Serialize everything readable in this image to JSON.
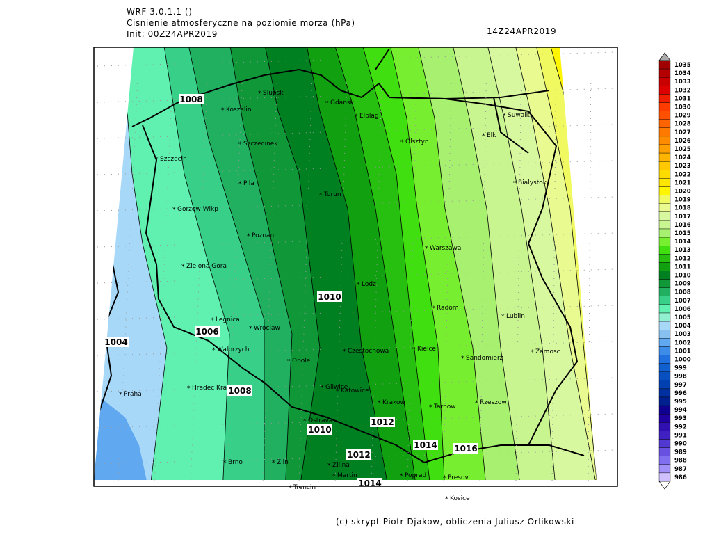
{
  "header": {
    "model": "WRF 3.0.1.1 ()",
    "title": "Cisnienie atmosferyczne na poziomie morza (hPa)",
    "init": "Init: 00Z24APR2019",
    "valid": "14Z24APR2019"
  },
  "map": {
    "cities": [
      "Slupsk",
      "Gdansk",
      "Koszalin",
      "Elblag",
      "Suwalki",
      "Szczecinek",
      "Olsztyn",
      "Elk",
      "Szczecin",
      "Pila",
      "Torun",
      "Bialystok",
      "Gorzow Wlkp",
      "Poznan",
      "Warszawa",
      "Zielona Gora",
      "Lodz",
      "Radom",
      "Lublin",
      "Legnica",
      "Wroclaw",
      "Walbrzych",
      "Kielce",
      "Czestochowa",
      "Opole",
      "Sandomierz",
      "Zamosc",
      "Hradec Kralove",
      "Gliwice",
      "Katowice",
      "Praha",
      "Krakow",
      "Tarnow",
      "Rzeszow",
      "Ostrava",
      "Brno",
      "Zlin",
      "Zilina",
      "Poprad",
      "Presov",
      "Martin",
      "Trencin",
      "Kosice"
    ],
    "isobar_labels": [
      1008,
      1010,
      1006,
      1004,
      1008,
      1010,
      1012,
      1014,
      1016,
      1012,
      1014
    ]
  },
  "colorbar": {
    "levels": [
      {
        "value": 1035,
        "color": "#a00000"
      },
      {
        "value": 1034,
        "color": "#b40000"
      },
      {
        "value": 1033,
        "color": "#c80000"
      },
      {
        "value": 1032,
        "color": "#dc0000"
      },
      {
        "value": 1031,
        "color": "#f01e00"
      },
      {
        "value": 1030,
        "color": "#ff3c00"
      },
      {
        "value": 1029,
        "color": "#ff5000"
      },
      {
        "value": 1028,
        "color": "#ff6400"
      },
      {
        "value": 1027,
        "color": "#ff7800"
      },
      {
        "value": 1026,
        "color": "#ff8c00"
      },
      {
        "value": 1025,
        "color": "#ffa000"
      },
      {
        "value": 1024,
        "color": "#ffb400"
      },
      {
        "value": 1023,
        "color": "#ffc800"
      },
      {
        "value": 1022,
        "color": "#ffdc00"
      },
      {
        "value": 1021,
        "color": "#ffe600"
      },
      {
        "value": 1020,
        "color": "#fff500"
      },
      {
        "value": 1019,
        "color": "#f0fa60"
      },
      {
        "value": 1018,
        "color": "#e8fa90"
      },
      {
        "value": 1017,
        "color": "#d8f8a0"
      },
      {
        "value": 1016,
        "color": "#c8f590"
      },
      {
        "value": 1015,
        "color": "#a8f070"
      },
      {
        "value": 1014,
        "color": "#78ee30"
      },
      {
        "value": 1013,
        "color": "#40e010"
      },
      {
        "value": 1012,
        "color": "#28c010"
      },
      {
        "value": 1011,
        "color": "#10a010"
      },
      {
        "value": 1010,
        "color": "#008020"
      },
      {
        "value": 1009,
        "color": "#109838"
      },
      {
        "value": 1008,
        "color": "#20b060"
      },
      {
        "value": 1007,
        "color": "#38d088"
      },
      {
        "value": 1006,
        "color": "#60f0b0"
      },
      {
        "value": 1005,
        "color": "#90f0d0"
      },
      {
        "value": 1004,
        "color": "#a8d8f8"
      },
      {
        "value": 1003,
        "color": "#88c0f0"
      },
      {
        "value": 1002,
        "color": "#60a8f0"
      },
      {
        "value": 1001,
        "color": "#3c8ce8"
      },
      {
        "value": 1000,
        "color": "#2070e0"
      },
      {
        "value": 999,
        "color": "#1060d0"
      },
      {
        "value": 998,
        "color": "#0850c0"
      },
      {
        "value": 997,
        "color": "#0040b0"
      },
      {
        "value": 996,
        "color": "#0030a0"
      },
      {
        "value": 995,
        "color": "#002090"
      },
      {
        "value": 994,
        "color": "#100090"
      },
      {
        "value": 993,
        "color": "#2000a0"
      },
      {
        "value": 992,
        "color": "#3010b0"
      },
      {
        "value": 991,
        "color": "#4020c0"
      },
      {
        "value": 990,
        "color": "#5038d0"
      },
      {
        "value": 989,
        "color": "#6850e0"
      },
      {
        "value": 988,
        "color": "#8070f0"
      },
      {
        "value": 987,
        "color": "#a090f8"
      },
      {
        "value": 986,
        "color": "#d0c0ff"
      }
    ]
  },
  "footer": "(c) skrypt Piotr Djakow, obliczenia Juliusz Orlikowski"
}
